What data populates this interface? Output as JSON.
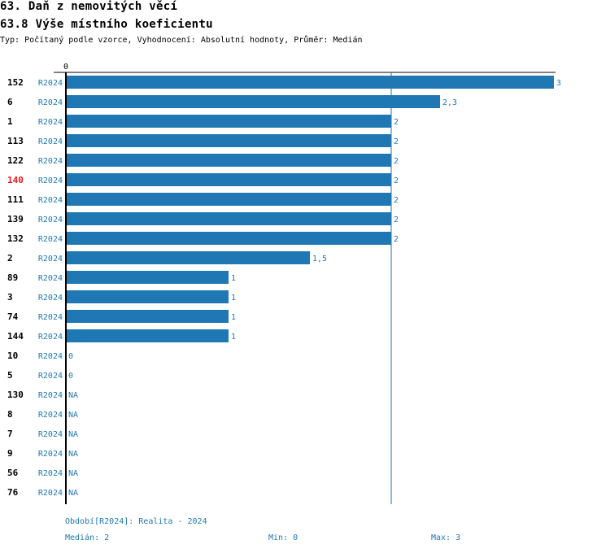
{
  "header": {
    "title": "63. Daň z nemovitých věcí",
    "subtitle": "63.8 Výše místního koeficientu",
    "meta": "Typ: Počítaný podle vzorce, Vyhodnocení: Absolutní hodnoty, Průměr: Medián"
  },
  "chart_data": {
    "type": "bar",
    "orientation": "horizontal",
    "xlim": [
      0,
      3
    ],
    "zero_tick_label": "0",
    "median_line": 2,
    "highlight_color": "#e8171b",
    "bar_color": "#1f77b4",
    "rows": [
      {
        "id": "152",
        "period": "R2024",
        "value": 3,
        "label": "3",
        "highlight": false
      },
      {
        "id": "6",
        "period": "R2024",
        "value": 2.3,
        "label": "2,3",
        "highlight": false
      },
      {
        "id": "1",
        "period": "R2024",
        "value": 2,
        "label": "2",
        "highlight": false
      },
      {
        "id": "113",
        "period": "R2024",
        "value": 2,
        "label": "2",
        "highlight": false
      },
      {
        "id": "122",
        "period": "R2024",
        "value": 2,
        "label": "2",
        "highlight": false
      },
      {
        "id": "140",
        "period": "R2024",
        "value": 2,
        "label": "2",
        "highlight": true
      },
      {
        "id": "111",
        "period": "R2024",
        "value": 2,
        "label": "2",
        "highlight": false
      },
      {
        "id": "139",
        "period": "R2024",
        "value": 2,
        "label": "2",
        "highlight": false
      },
      {
        "id": "132",
        "period": "R2024",
        "value": 2,
        "label": "2",
        "highlight": false
      },
      {
        "id": "2",
        "period": "R2024",
        "value": 1.5,
        "label": "1,5",
        "highlight": false
      },
      {
        "id": "89",
        "period": "R2024",
        "value": 1,
        "label": "1",
        "highlight": false
      },
      {
        "id": "3",
        "period": "R2024",
        "value": 1,
        "label": "1",
        "highlight": false
      },
      {
        "id": "74",
        "period": "R2024",
        "value": 1,
        "label": "1",
        "highlight": false
      },
      {
        "id": "144",
        "period": "R2024",
        "value": 1,
        "label": "1",
        "highlight": false
      },
      {
        "id": "10",
        "period": "R2024",
        "value": 0,
        "label": "0",
        "highlight": false
      },
      {
        "id": "5",
        "period": "R2024",
        "value": 0,
        "label": "0",
        "highlight": false
      },
      {
        "id": "130",
        "period": "R2024",
        "value": null,
        "label": "NA",
        "highlight": false
      },
      {
        "id": "8",
        "period": "R2024",
        "value": null,
        "label": "NA",
        "highlight": false
      },
      {
        "id": "7",
        "period": "R2024",
        "value": null,
        "label": "NA",
        "highlight": false
      },
      {
        "id": "9",
        "period": "R2024",
        "value": null,
        "label": "NA",
        "highlight": false
      },
      {
        "id": "56",
        "period": "R2024",
        "value": null,
        "label": "NA",
        "highlight": false
      },
      {
        "id": "76",
        "period": "R2024",
        "value": null,
        "label": "NA",
        "highlight": false
      }
    ]
  },
  "footer": {
    "period_note": "Období[R2024]: Realita - 2024",
    "median": "Medián: 2",
    "min": "Min: 0",
    "max": "Max: 3"
  }
}
